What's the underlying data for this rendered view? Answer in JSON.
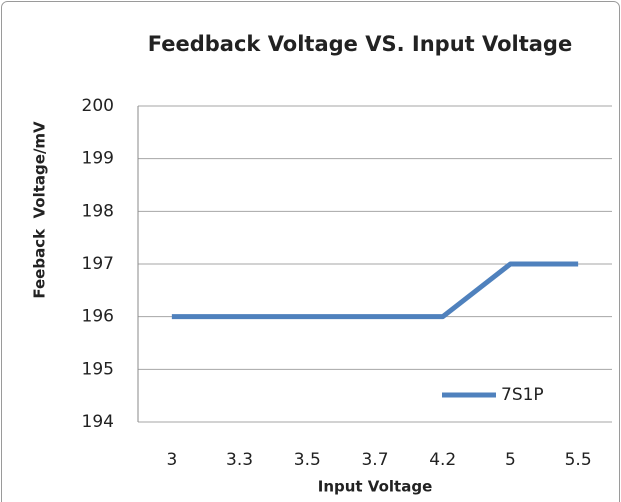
{
  "chart_data": {
    "type": "line",
    "title": "Feedback Voltage VS. Input Voltage",
    "x_label": "Input Voltage",
    "y_label": "Feeback  Voltage/mV",
    "categories": [
      "3",
      "3.3",
      "3.5",
      "3.7",
      "4.2",
      "5",
      "5.5"
    ],
    "series": [
      {
        "name": "7S1P",
        "color": "#4f81bd",
        "values": [
          196,
          196,
          196,
          196,
          196,
          197,
          197
        ]
      }
    ],
    "ylim": [
      194,
      200
    ],
    "yticks": [
      194,
      195,
      196,
      197,
      198,
      199,
      200
    ],
    "grid": true,
    "legend": "lower right"
  }
}
